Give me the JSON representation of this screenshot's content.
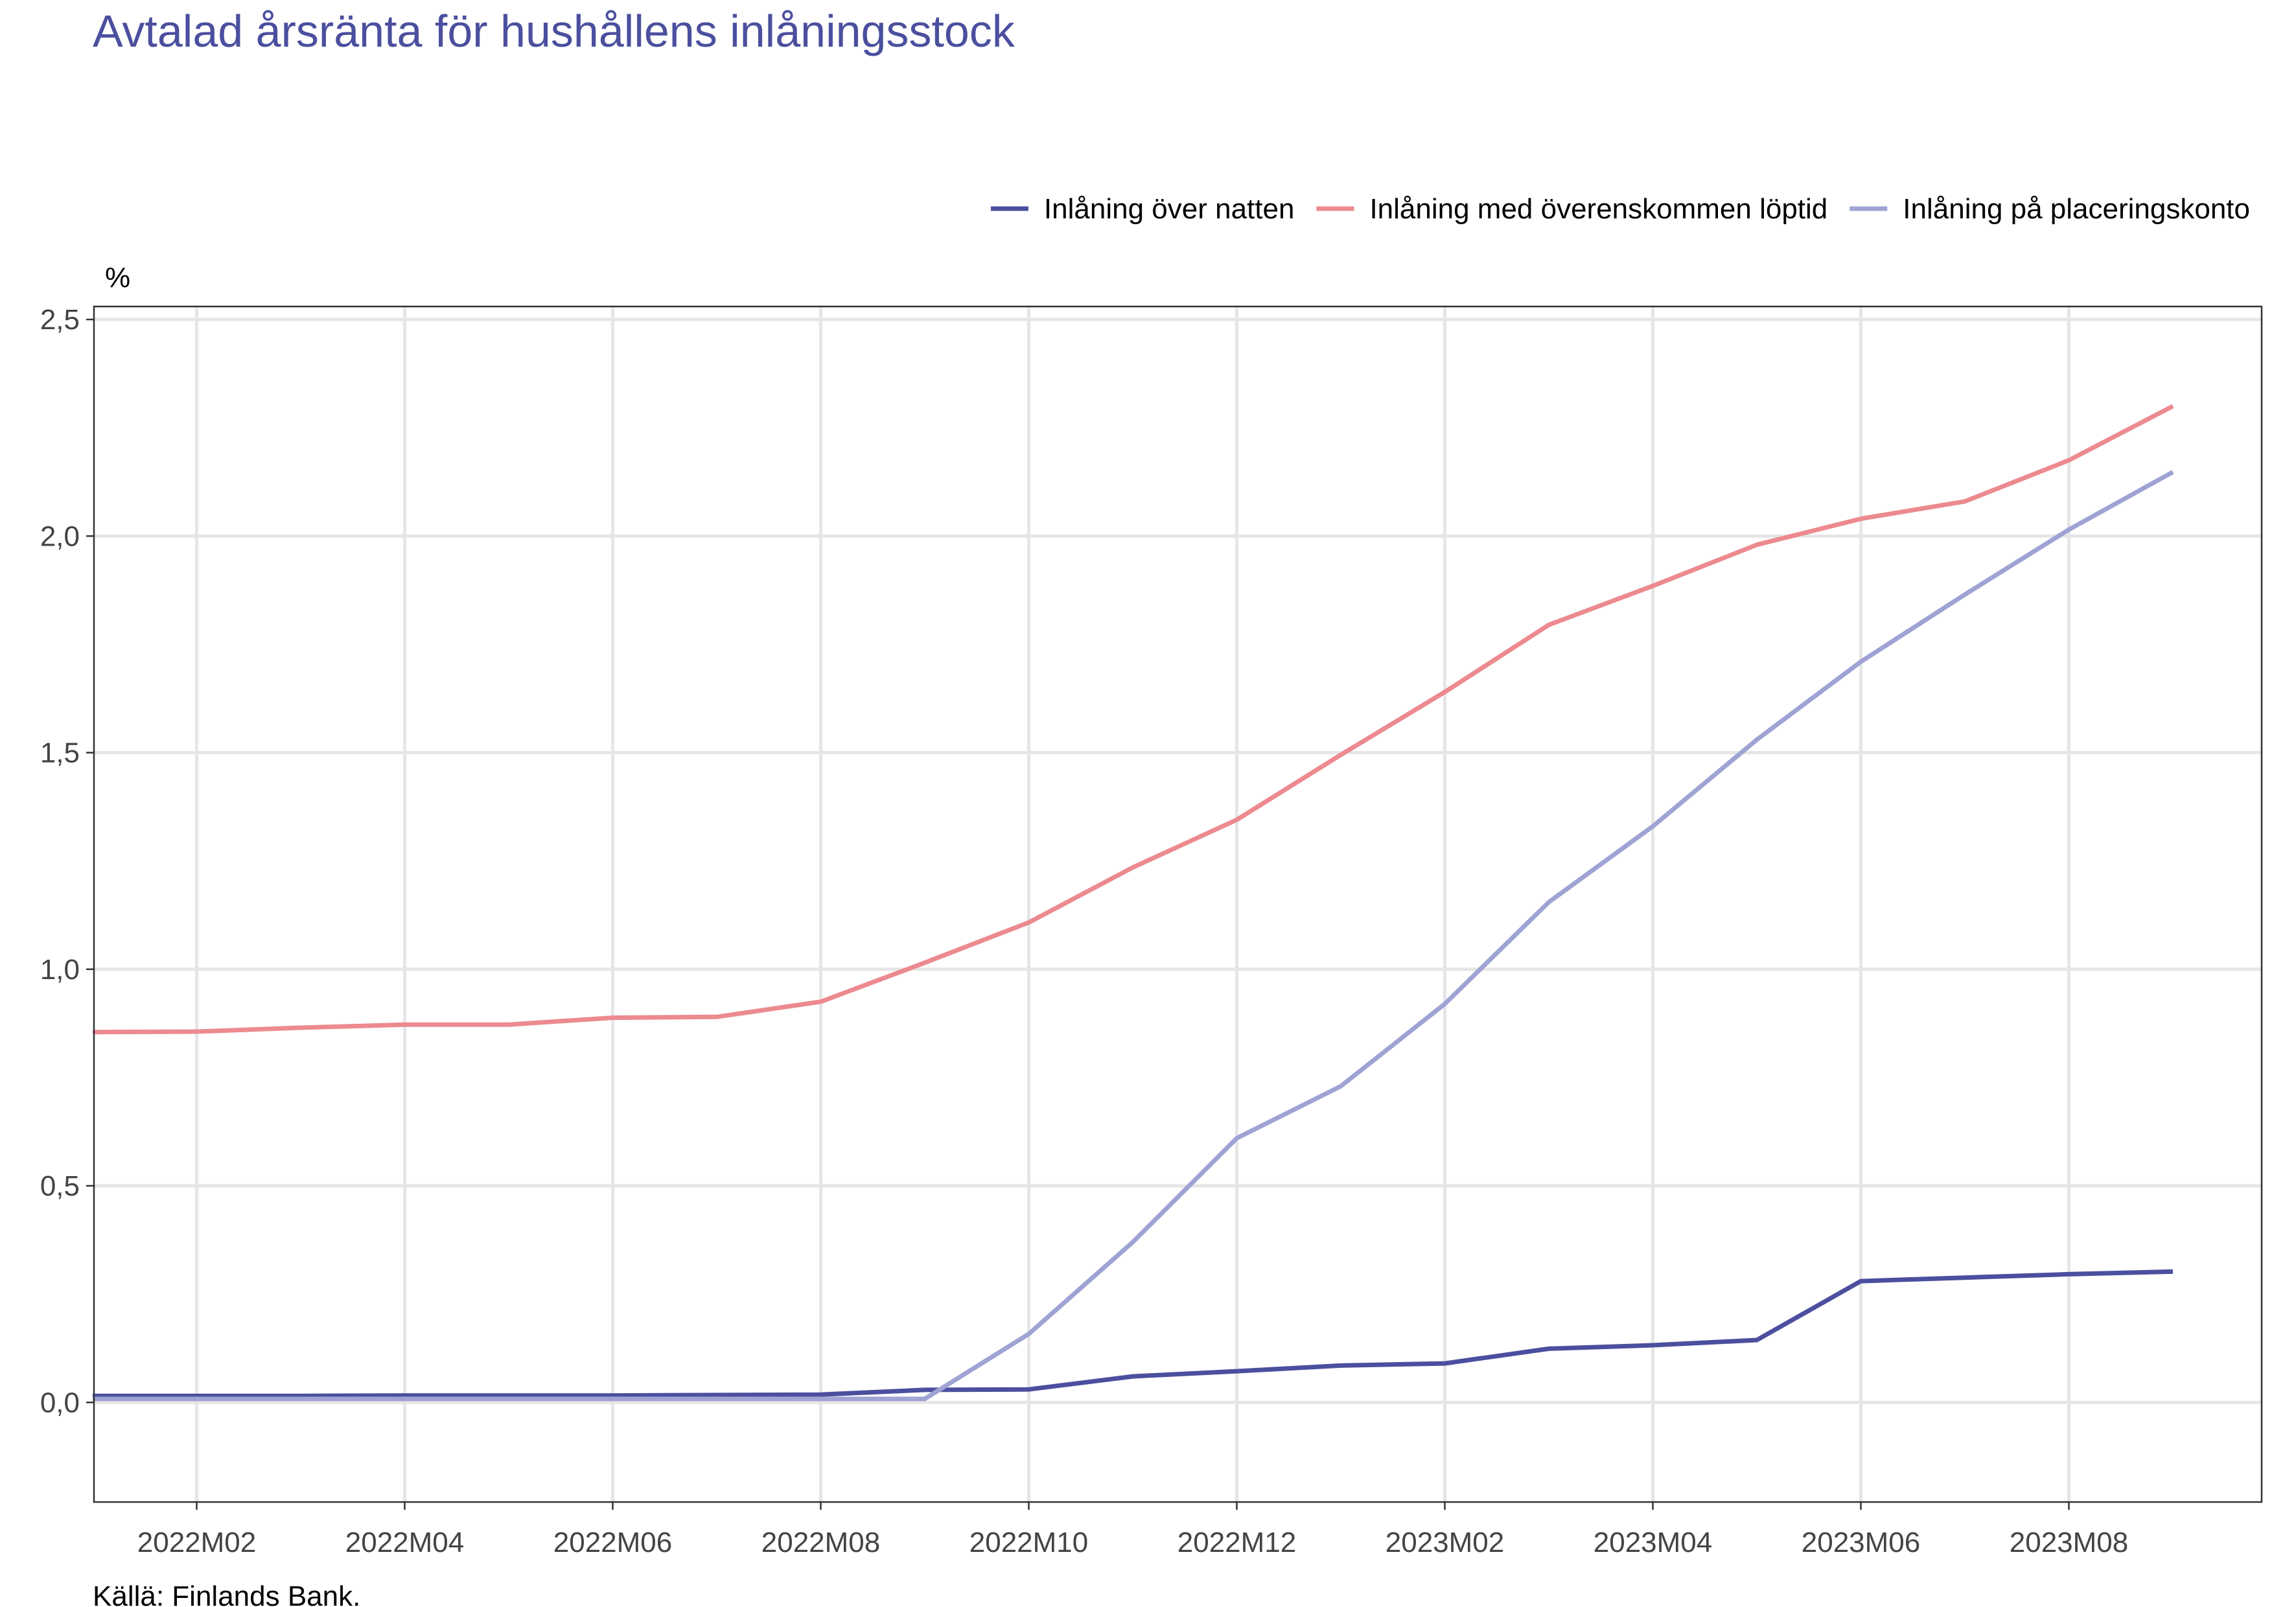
{
  "chart_data": {
    "type": "line",
    "title": "Avtalad årsränta för hushållens inlåningsstock",
    "ylabel": "%",
    "xlabel": "",
    "source": "Källä: Finlands Bank.",
    "ylim": [
      -0.23,
      2.53
    ],
    "yticks": [
      0.0,
      0.5,
      1.0,
      1.5,
      2.0,
      2.5
    ],
    "ytick_labels": [
      "0,0",
      "0,5",
      "1,0",
      "1,5",
      "2,0",
      "2,5"
    ],
    "grid": true,
    "legend_position": "top-right",
    "x": [
      "2022M01",
      "2022M02",
      "2022M03",
      "2022M04",
      "2022M05",
      "2022M06",
      "2022M07",
      "2022M08",
      "2022M09",
      "2022M10",
      "2022M11",
      "2022M12",
      "2023M01",
      "2023M02",
      "2023M03",
      "2023M04",
      "2023M05",
      "2023M06",
      "2023M07",
      "2023M08",
      "2023M09"
    ],
    "xticks": [
      "2022M02",
      "2022M04",
      "2022M06",
      "2022M08",
      "2022M10",
      "2022M12",
      "2023M02",
      "2023M04",
      "2023M06",
      "2023M08"
    ],
    "series": [
      {
        "name": "Inlåning över natten",
        "color": "#4b4f9e",
        "values": [
          0.015,
          0.015,
          0.015,
          0.016,
          0.016,
          0.016,
          0.017,
          0.018,
          0.029,
          0.03,
          0.06,
          0.072,
          0.085,
          0.09,
          0.124,
          0.132,
          0.144,
          0.28,
          0.288,
          0.296,
          0.302
        ]
      },
      {
        "name": "Inlåning med överenskommen löptid",
        "color": "#ec8a90",
        "values": [
          0.855,
          0.856,
          0.865,
          0.872,
          0.872,
          0.888,
          0.89,
          0.925,
          1.015,
          1.108,
          1.235,
          1.345,
          1.495,
          1.64,
          1.795,
          1.885,
          1.98,
          2.04,
          2.08,
          2.175,
          2.3
        ]
      },
      {
        "name": "Inlåning på placeringskonto",
        "color": "#9fa3d4",
        "values": [
          0.008,
          0.008,
          0.008,
          0.008,
          0.008,
          0.008,
          0.008,
          0.008,
          0.008,
          0.158,
          0.37,
          0.61,
          0.73,
          0.92,
          1.155,
          1.33,
          1.53,
          1.71,
          1.865,
          2.015,
          2.148
        ]
      }
    ]
  }
}
